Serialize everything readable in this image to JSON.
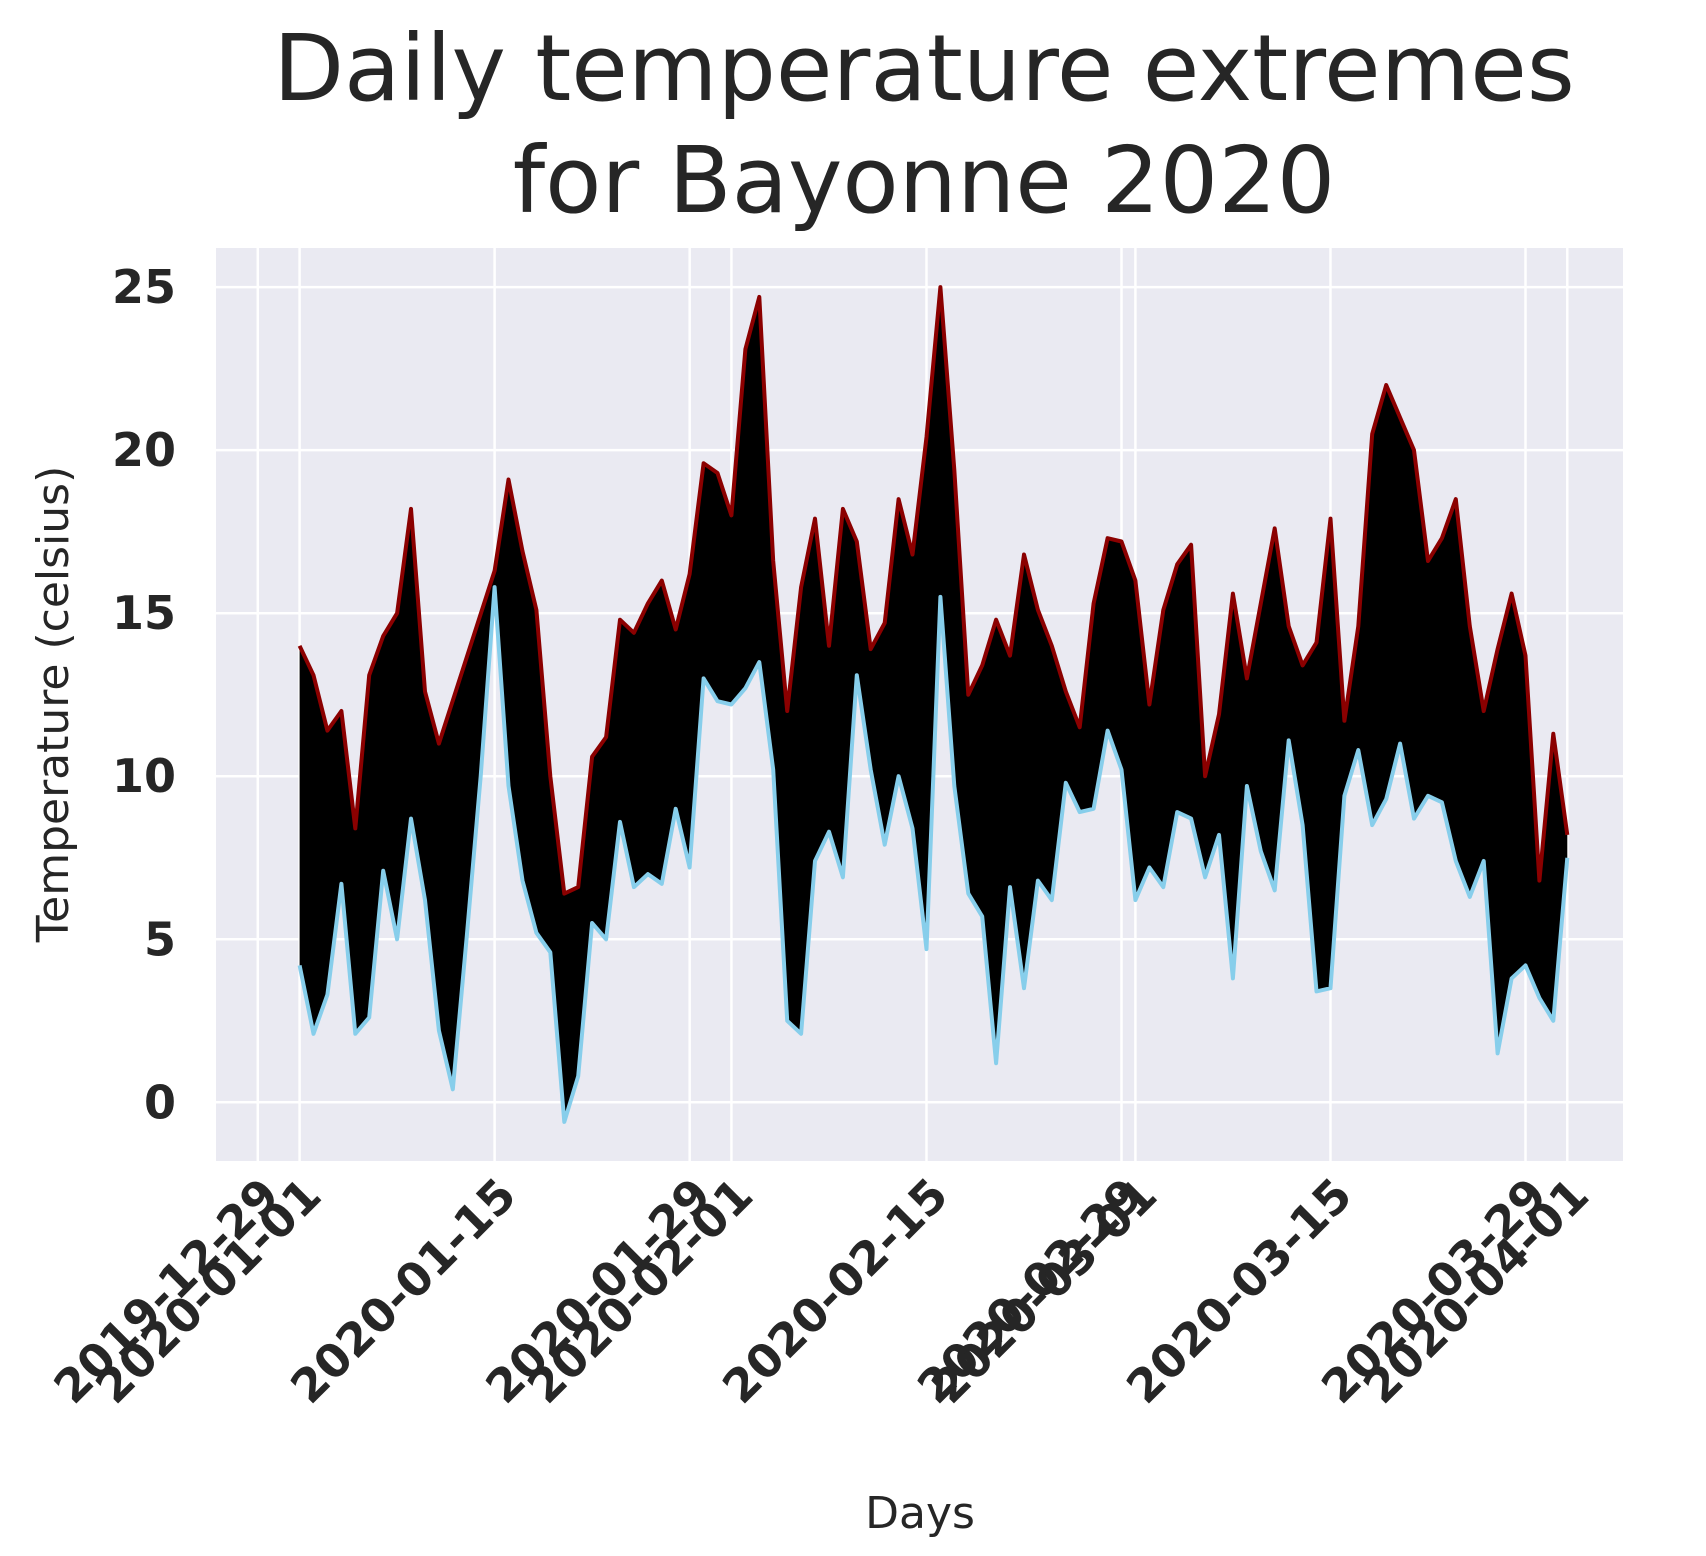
{
  "chart_data": {
    "type": "area",
    "title_lines": [
      "Daily temperature extremes",
      "for Bayonne 2020"
    ],
    "xlabel": "Days",
    "ylabel": "Temperature (celsius)",
    "x_range": [
      "2019-12-26",
      "2020-04-05"
    ],
    "ylim": [
      -1.8,
      26.2
    ],
    "grid": true,
    "y_ticks": [
      0,
      5,
      10,
      15,
      20,
      25
    ],
    "x_ticks": [
      "2019-12-29",
      "2020-01-01",
      "2020-01-15",
      "2020-01-29",
      "2020-02-01",
      "2020-02-15",
      "2020-02-29",
      "2020-03-01",
      "2020-03-15",
      "2020-03-29",
      "2020-04-01"
    ],
    "fill_color": "#000000",
    "background_color": "#eaeaf2",
    "series": [
      {
        "color": "#8b0000",
        "points": [
          [
            "2020-01-01",
            14.0
          ],
          [
            "2020-01-02",
            13.1
          ],
          [
            "2020-01-03",
            11.4
          ],
          [
            "2020-01-04",
            12.0
          ],
          [
            "2020-01-05",
            8.4
          ],
          [
            "2020-01-06",
            13.1
          ],
          [
            "2020-01-07",
            14.3
          ],
          [
            "2020-01-08",
            15.0
          ],
          [
            "2020-01-09",
            18.2
          ],
          [
            "2020-01-10",
            12.6
          ],
          [
            "2020-01-11",
            11.0
          ],
          [
            "2020-01-15",
            16.3
          ],
          [
            "2020-01-16",
            19.1
          ],
          [
            "2020-01-17",
            16.9
          ],
          [
            "2020-01-18",
            15.1
          ],
          [
            "2020-01-19",
            10.0
          ],
          [
            "2020-01-20",
            6.4
          ],
          [
            "2020-01-21",
            6.6
          ],
          [
            "2020-01-22",
            10.6
          ],
          [
            "2020-01-23",
            11.2
          ],
          [
            "2020-01-24",
            14.8
          ],
          [
            "2020-01-25",
            14.4
          ],
          [
            "2020-01-26",
            15.3
          ],
          [
            "2020-01-27",
            16.0
          ],
          [
            "2020-01-28",
            14.5
          ],
          [
            "2020-01-29",
            16.2
          ],
          [
            "2020-01-30",
            19.6
          ],
          [
            "2020-01-31",
            19.3
          ],
          [
            "2020-02-01",
            18.0
          ],
          [
            "2020-02-02",
            23.1
          ],
          [
            "2020-02-03",
            24.7
          ],
          [
            "2020-02-04",
            16.6
          ],
          [
            "2020-02-05",
            12.0
          ],
          [
            "2020-02-06",
            15.8
          ],
          [
            "2020-02-07",
            17.9
          ],
          [
            "2020-02-08",
            14.0
          ],
          [
            "2020-02-09",
            18.2
          ],
          [
            "2020-02-10",
            17.2
          ],
          [
            "2020-02-11",
            13.9
          ],
          [
            "2020-02-12",
            14.7
          ],
          [
            "2020-02-13",
            18.5
          ],
          [
            "2020-02-14",
            16.8
          ],
          [
            "2020-02-15",
            20.4
          ],
          [
            "2020-02-16",
            25.0
          ],
          [
            "2020-02-17",
            19.4
          ],
          [
            "2020-02-18",
            12.5
          ],
          [
            "2020-02-19",
            13.4
          ],
          [
            "2020-02-20",
            14.8
          ],
          [
            "2020-02-21",
            13.7
          ],
          [
            "2020-02-22",
            16.8
          ],
          [
            "2020-02-23",
            15.1
          ],
          [
            "2020-02-24",
            14.0
          ],
          [
            "2020-02-25",
            12.6
          ],
          [
            "2020-02-26",
            11.5
          ],
          [
            "2020-02-27",
            15.3
          ],
          [
            "2020-02-28",
            17.3
          ],
          [
            "2020-02-29",
            17.2
          ],
          [
            "2020-03-01",
            16.0
          ],
          [
            "2020-03-02",
            12.2
          ],
          [
            "2020-03-03",
            15.1
          ],
          [
            "2020-03-04",
            16.5
          ],
          [
            "2020-03-05",
            17.1
          ],
          [
            "2020-03-06",
            10.0
          ],
          [
            "2020-03-07",
            11.9
          ],
          [
            "2020-03-08",
            15.6
          ],
          [
            "2020-03-09",
            13.0
          ],
          [
            "2020-03-10",
            15.3
          ],
          [
            "2020-03-11",
            17.6
          ],
          [
            "2020-03-12",
            14.6
          ],
          [
            "2020-03-13",
            13.4
          ],
          [
            "2020-03-14",
            14.1
          ],
          [
            "2020-03-15",
            17.9
          ],
          [
            "2020-03-16",
            11.7
          ],
          [
            "2020-03-17",
            14.6
          ],
          [
            "2020-03-18",
            20.5
          ],
          [
            "2020-03-19",
            22.0
          ],
          [
            "2020-03-20",
            21.0
          ],
          [
            "2020-03-21",
            20.0
          ],
          [
            "2020-03-22",
            16.6
          ],
          [
            "2020-03-23",
            17.3
          ],
          [
            "2020-03-24",
            18.5
          ],
          [
            "2020-03-25",
            14.6
          ],
          [
            "2020-03-26",
            12.0
          ],
          [
            "2020-03-27",
            13.9
          ],
          [
            "2020-03-28",
            15.6
          ],
          [
            "2020-03-29",
            13.7
          ],
          [
            "2020-03-30",
            6.8
          ],
          [
            "2020-03-31",
            11.3
          ],
          [
            "2020-04-01",
            8.2
          ]
        ]
      },
      {
        "color": "#87ceeb",
        "points": [
          [
            "2020-01-01",
            4.2
          ],
          [
            "2020-01-02",
            2.1
          ],
          [
            "2020-01-03",
            3.3
          ],
          [
            "2020-01-04",
            6.7
          ],
          [
            "2020-01-05",
            2.1
          ],
          [
            "2020-01-06",
            2.6
          ],
          [
            "2020-01-07",
            7.1
          ],
          [
            "2020-01-08",
            5.0
          ],
          [
            "2020-01-09",
            8.7
          ],
          [
            "2020-01-10",
            6.2
          ],
          [
            "2020-01-11",
            2.2
          ],
          [
            "2020-01-12",
            0.4
          ],
          [
            "2020-01-13",
            5.1
          ],
          [
            "2020-01-14",
            10.0
          ],
          [
            "2020-01-15",
            15.8
          ],
          [
            "2020-01-16",
            9.7
          ],
          [
            "2020-01-17",
            6.8
          ],
          [
            "2020-01-18",
            5.2
          ],
          [
            "2020-01-19",
            4.6
          ],
          [
            "2020-01-20",
            -0.6
          ],
          [
            "2020-01-21",
            0.8
          ],
          [
            "2020-01-22",
            5.5
          ],
          [
            "2020-01-23",
            5.0
          ],
          [
            "2020-01-24",
            8.6
          ],
          [
            "2020-01-25",
            6.6
          ],
          [
            "2020-01-26",
            7.0
          ],
          [
            "2020-01-27",
            6.7
          ],
          [
            "2020-01-28",
            9.0
          ],
          [
            "2020-01-29",
            7.2
          ],
          [
            "2020-01-30",
            13.0
          ],
          [
            "2020-01-31",
            12.3
          ],
          [
            "2020-02-01",
            12.2
          ],
          [
            "2020-02-02",
            12.7
          ],
          [
            "2020-02-03",
            13.5
          ],
          [
            "2020-02-04",
            10.2
          ],
          [
            "2020-02-05",
            2.5
          ],
          [
            "2020-02-06",
            2.1
          ],
          [
            "2020-02-07",
            7.4
          ],
          [
            "2020-02-08",
            8.3
          ],
          [
            "2020-02-09",
            6.9
          ],
          [
            "2020-02-10",
            13.1
          ],
          [
            "2020-02-11",
            10.2
          ],
          [
            "2020-02-12",
            7.9
          ],
          [
            "2020-02-13",
            10.0
          ],
          [
            "2020-02-14",
            8.4
          ],
          [
            "2020-02-15",
            4.7
          ],
          [
            "2020-02-16",
            15.5
          ],
          [
            "2020-02-17",
            9.7
          ],
          [
            "2020-02-18",
            6.4
          ],
          [
            "2020-02-19",
            5.7
          ],
          [
            "2020-02-20",
            1.2
          ],
          [
            "2020-02-21",
            6.6
          ],
          [
            "2020-02-22",
            3.5
          ],
          [
            "2020-02-23",
            6.8
          ],
          [
            "2020-02-24",
            6.2
          ],
          [
            "2020-02-25",
            9.8
          ],
          [
            "2020-02-26",
            8.9
          ],
          [
            "2020-02-27",
            9.0
          ],
          [
            "2020-02-28",
            11.4
          ],
          [
            "2020-02-29",
            10.2
          ],
          [
            "2020-03-01",
            6.2
          ],
          [
            "2020-03-02",
            7.2
          ],
          [
            "2020-03-03",
            6.6
          ],
          [
            "2020-03-04",
            8.9
          ],
          [
            "2020-03-05",
            8.7
          ],
          [
            "2020-03-06",
            6.9
          ],
          [
            "2020-03-07",
            8.2
          ],
          [
            "2020-03-08",
            3.8
          ],
          [
            "2020-03-09",
            9.7
          ],
          [
            "2020-03-10",
            7.7
          ],
          [
            "2020-03-11",
            6.5
          ],
          [
            "2020-03-12",
            11.1
          ],
          [
            "2020-03-13",
            8.5
          ],
          [
            "2020-03-14",
            3.4
          ],
          [
            "2020-03-15",
            3.5
          ],
          [
            "2020-03-16",
            9.4
          ],
          [
            "2020-03-17",
            10.8
          ],
          [
            "2020-03-18",
            8.5
          ],
          [
            "2020-03-19",
            9.3
          ],
          [
            "2020-03-20",
            11.0
          ],
          [
            "2020-03-21",
            8.7
          ],
          [
            "2020-03-22",
            9.4
          ],
          [
            "2020-03-23",
            9.2
          ],
          [
            "2020-03-24",
            7.4
          ],
          [
            "2020-03-25",
            6.3
          ],
          [
            "2020-03-26",
            7.4
          ],
          [
            "2020-03-27",
            1.5
          ],
          [
            "2020-03-28",
            3.8
          ],
          [
            "2020-03-29",
            4.2
          ],
          [
            "2020-03-30",
            3.2
          ],
          [
            "2020-03-31",
            2.5
          ],
          [
            "2020-04-01",
            7.5
          ]
        ]
      }
    ]
  }
}
